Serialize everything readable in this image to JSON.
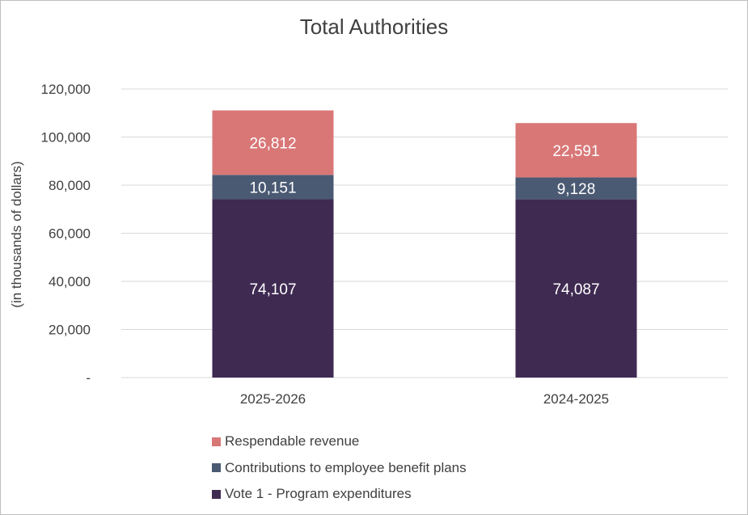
{
  "chart_data": {
    "type": "bar",
    "stacked": true,
    "title": "Total Authorities",
    "xlabel": "",
    "ylabel": "(in thousands of dollars)",
    "ylim": [
      0,
      120000
    ],
    "yticks": [
      0,
      20000,
      40000,
      60000,
      80000,
      100000,
      120000
    ],
    "ytick_labels": [
      "-",
      "20,000",
      "40,000",
      "60,000",
      "80,000",
      "100,000",
      "120,000"
    ],
    "grid": true,
    "legend_position": "bottom",
    "categories": [
      "2025-2026",
      "2024-2025"
    ],
    "series": [
      {
        "name": "Vote 1 - Program expenditures",
        "values": [
          74107,
          74087
        ],
        "labels": [
          "74,107",
          "74,087"
        ],
        "color": "#3f2a52"
      },
      {
        "name": "Contributions to employee benefit plans",
        "values": [
          10151,
          9128
        ],
        "labels": [
          "10,151",
          "9,128"
        ],
        "color": "#4b5a73"
      },
      {
        "name": "Respendable revenue",
        "values": [
          26812,
          22591
        ],
        "labels": [
          "26,812",
          "22,591"
        ],
        "color": "#d97777"
      }
    ]
  }
}
